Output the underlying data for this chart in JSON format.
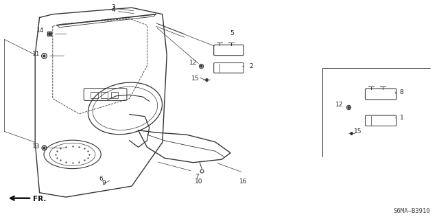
{
  "background_color": "#ffffff",
  "line_color": "#333333",
  "diagram_ref": "S6MA−B3910",
  "fig_width": 6.4,
  "fig_height": 3.19,
  "dpi": 100
}
